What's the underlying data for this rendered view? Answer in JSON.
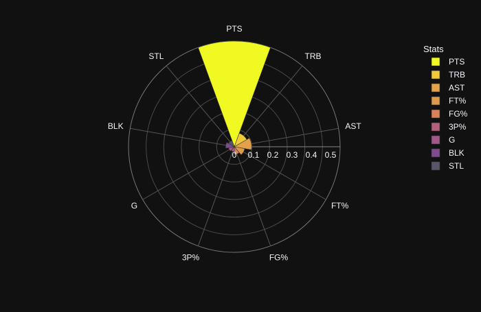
{
  "chart_data": {
    "type": "barpolar",
    "legend_title": "Stats",
    "legend_placement": "right",
    "grid": true,
    "radial_axis": {
      "range": [
        0,
        0.55
      ],
      "tick_labels": [
        "0",
        "0.1",
        "0.2",
        "0.3",
        "0.4",
        "0.5"
      ],
      "tick_values": [
        0,
        0.1,
        0.2,
        0.3,
        0.4,
        0.5
      ]
    },
    "angular_categories": [
      "PTS",
      "TRB",
      "AST",
      "FT%",
      "FG%",
      "3P%",
      "G",
      "BLK",
      "STL"
    ],
    "series": [
      {
        "name": "PTS",
        "category": "PTS",
        "value": 0.55,
        "color": "#f0f921"
      },
      {
        "name": "TRB",
        "category": "TRB",
        "value": 0.075,
        "color": "#f3c93a"
      },
      {
        "name": "AST",
        "category": "AST",
        "value": 0.09,
        "color": "#e3a14a"
      },
      {
        "name": "FT%",
        "category": "FT%",
        "value": 0.055,
        "color": "#dd9a4c"
      },
      {
        "name": "FG%",
        "category": "FG%",
        "value": 0.04,
        "color": "#d9825a"
      },
      {
        "name": "3P%",
        "category": "3P%",
        "value": 0.025,
        "color": "#b4607c"
      },
      {
        "name": "G",
        "category": "G",
        "value": 0.03,
        "color": "#a3588a"
      },
      {
        "name": "BLK",
        "category": "BLK",
        "value": 0.045,
        "color": "#7e4b8f"
      },
      {
        "name": "STL",
        "category": "STL",
        "value": 0.035,
        "color": "#595669"
      }
    ]
  }
}
